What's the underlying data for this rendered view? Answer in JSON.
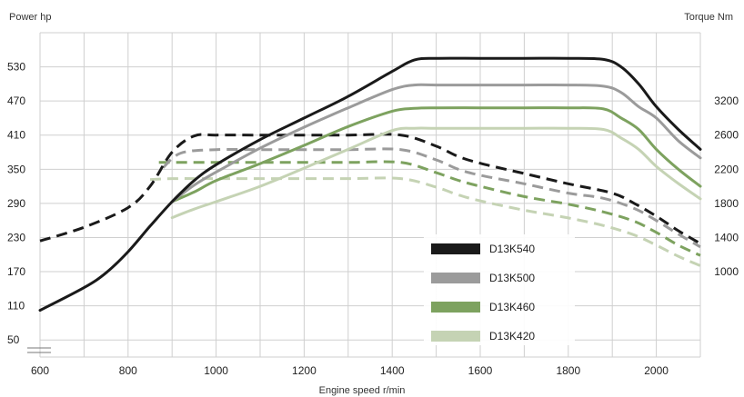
{
  "chart_data": {
    "type": "line",
    "left_axis_title": "Power hp",
    "right_axis_title": "Torque Nm",
    "xlabel": "Engine speed r/min",
    "x_ticks": [
      600,
      800,
      1000,
      1200,
      1400,
      1600,
      1800,
      2000
    ],
    "left_ticks": [
      50,
      110,
      170,
      230,
      290,
      350,
      410,
      470,
      530
    ],
    "right_ticks": [
      1000,
      1400,
      1800,
      2200,
      2600,
      3200
    ],
    "xlim": [
      600,
      2100
    ],
    "ylim_left": [
      20,
      590
    ],
    "grid": true,
    "legend_position": "lower-right",
    "series": [
      {
        "name": "D13K540",
        "color": "#1a1a1a",
        "power": [
          [
            600,
            102
          ],
          [
            700,
            142
          ],
          [
            750,
            168
          ],
          [
            800,
            205
          ],
          [
            850,
            250
          ],
          [
            900,
            293
          ],
          [
            950,
            330
          ],
          [
            1000,
            358
          ],
          [
            1100,
            402
          ],
          [
            1200,
            440
          ],
          [
            1300,
            478
          ],
          [
            1400,
            522
          ],
          [
            1450,
            542
          ],
          [
            1500,
            545
          ],
          [
            1600,
            545
          ],
          [
            1700,
            545
          ],
          [
            1800,
            545
          ],
          [
            1880,
            543
          ],
          [
            1920,
            530
          ],
          [
            1960,
            500
          ],
          [
            2000,
            460
          ],
          [
            2050,
            420
          ],
          [
            2100,
            385
          ]
        ],
        "torque": [
          [
            600,
            1360
          ],
          [
            700,
            1520
          ],
          [
            800,
            1750
          ],
          [
            850,
            2000
          ],
          [
            900,
            2400
          ],
          [
            950,
            2590
          ],
          [
            1000,
            2600
          ],
          [
            1100,
            2600
          ],
          [
            1200,
            2600
          ],
          [
            1300,
            2600
          ],
          [
            1420,
            2600
          ],
          [
            1500,
            2470
          ],
          [
            1550,
            2350
          ],
          [
            1600,
            2270
          ],
          [
            1700,
            2150
          ],
          [
            1800,
            2030
          ],
          [
            1900,
            1920
          ],
          [
            1950,
            1800
          ],
          [
            2000,
            1650
          ],
          [
            2050,
            1480
          ],
          [
            2100,
            1330
          ]
        ]
      },
      {
        "name": "D13K500",
        "color": "#9b9b9b",
        "power": [
          [
            900,
            293
          ],
          [
            950,
            322
          ],
          [
            1000,
            345
          ],
          [
            1100,
            387
          ],
          [
            1200,
            424
          ],
          [
            1300,
            458
          ],
          [
            1400,
            490
          ],
          [
            1450,
            498
          ],
          [
            1500,
            498
          ],
          [
            1600,
            498
          ],
          [
            1700,
            498
          ],
          [
            1800,
            498
          ],
          [
            1880,
            496
          ],
          [
            1920,
            485
          ],
          [
            1960,
            460
          ],
          [
            2000,
            440
          ],
          [
            2050,
            400
          ],
          [
            2100,
            370
          ]
        ],
        "torque": [
          [
            880,
            2220
          ],
          [
            920,
            2390
          ],
          [
            1000,
            2430
          ],
          [
            1100,
            2430
          ],
          [
            1200,
            2430
          ],
          [
            1300,
            2430
          ],
          [
            1420,
            2430
          ],
          [
            1500,
            2310
          ],
          [
            1550,
            2200
          ],
          [
            1600,
            2130
          ],
          [
            1700,
            2030
          ],
          [
            1800,
            1920
          ],
          [
            1880,
            1860
          ],
          [
            1950,
            1740
          ],
          [
            2000,
            1600
          ],
          [
            2050,
            1440
          ],
          [
            2100,
            1290
          ]
        ]
      },
      {
        "name": "D13K460",
        "color": "#7da25f",
        "power": [
          [
            900,
            293
          ],
          [
            950,
            310
          ],
          [
            1000,
            330
          ],
          [
            1100,
            360
          ],
          [
            1200,
            392
          ],
          [
            1300,
            425
          ],
          [
            1400,
            452
          ],
          [
            1450,
            457
          ],
          [
            1500,
            458
          ],
          [
            1600,
            458
          ],
          [
            1700,
            458
          ],
          [
            1800,
            458
          ],
          [
            1880,
            456
          ],
          [
            1920,
            440
          ],
          [
            1960,
            420
          ],
          [
            2000,
            385
          ],
          [
            2050,
            350
          ],
          [
            2100,
            320
          ]
        ],
        "torque": [
          [
            870,
            2280
          ],
          [
            900,
            2280
          ],
          [
            1000,
            2280
          ],
          [
            1100,
            2280
          ],
          [
            1200,
            2280
          ],
          [
            1300,
            2280
          ],
          [
            1420,
            2280
          ],
          [
            1500,
            2160
          ],
          [
            1550,
            2070
          ],
          [
            1600,
            2000
          ],
          [
            1700,
            1880
          ],
          [
            1800,
            1790
          ],
          [
            1880,
            1700
          ],
          [
            1950,
            1590
          ],
          [
            2000,
            1460
          ],
          [
            2050,
            1310
          ],
          [
            2100,
            1190
          ]
        ]
      },
      {
        "name": "D13K420",
        "color": "#c5d3b4",
        "power": [
          [
            900,
            265
          ],
          [
            950,
            280
          ],
          [
            1000,
            293
          ],
          [
            1100,
            320
          ],
          [
            1200,
            352
          ],
          [
            1300,
            385
          ],
          [
            1400,
            418
          ],
          [
            1450,
            422
          ],
          [
            1500,
            422
          ],
          [
            1600,
            422
          ],
          [
            1700,
            422
          ],
          [
            1800,
            422
          ],
          [
            1880,
            420
          ],
          [
            1920,
            405
          ],
          [
            1960,
            385
          ],
          [
            2000,
            355
          ],
          [
            2050,
            325
          ],
          [
            2100,
            298
          ]
        ],
        "torque": [
          [
            850,
            2080
          ],
          [
            900,
            2090
          ],
          [
            1000,
            2090
          ],
          [
            1100,
            2090
          ],
          [
            1200,
            2090
          ],
          [
            1300,
            2090
          ],
          [
            1420,
            2090
          ],
          [
            1500,
            1990
          ],
          [
            1550,
            1900
          ],
          [
            1600,
            1830
          ],
          [
            1700,
            1720
          ],
          [
            1800,
            1630
          ],
          [
            1880,
            1540
          ],
          [
            1950,
            1430
          ],
          [
            2000,
            1310
          ],
          [
            2050,
            1180
          ],
          [
            2100,
            1070
          ]
        ]
      }
    ]
  }
}
